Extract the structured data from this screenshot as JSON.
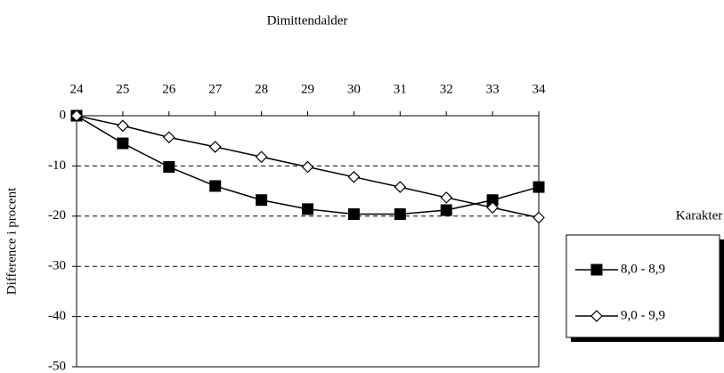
{
  "chart_data": {
    "type": "line",
    "x_label": "Dimittendalder",
    "y_label": "Difference i procent",
    "legend_title": "Karakter",
    "legend_position": "right",
    "x": [
      24,
      25,
      26,
      27,
      28,
      29,
      30,
      31,
      32,
      33,
      34
    ],
    "xlim": [
      24,
      34
    ],
    "xticks": [
      24,
      25,
      26,
      27,
      28,
      29,
      30,
      31,
      32,
      33,
      34
    ],
    "ylim": [
      -50,
      0
    ],
    "yticks": [
      0,
      -10,
      -20,
      -30,
      -40,
      -50
    ],
    "grid": true,
    "series": [
      {
        "name": "8,0 - 8,9",
        "color": "#000000",
        "marker": "square",
        "marker_fill": "#000000",
        "values": [
          0,
          -5.5,
          -10.2,
          -14,
          -16.8,
          -18.6,
          -19.6,
          -19.6,
          -18.8,
          -16.8,
          -14.2
        ]
      },
      {
        "name": "9,0 - 9,9",
        "color": "#000000",
        "marker": "diamond",
        "marker_fill": "#ffffff",
        "values": [
          0,
          -2,
          -4.3,
          -6.2,
          -8.2,
          -10.2,
          -12.2,
          -14.2,
          -16.3,
          -18.3,
          -20.3
        ]
      }
    ]
  }
}
